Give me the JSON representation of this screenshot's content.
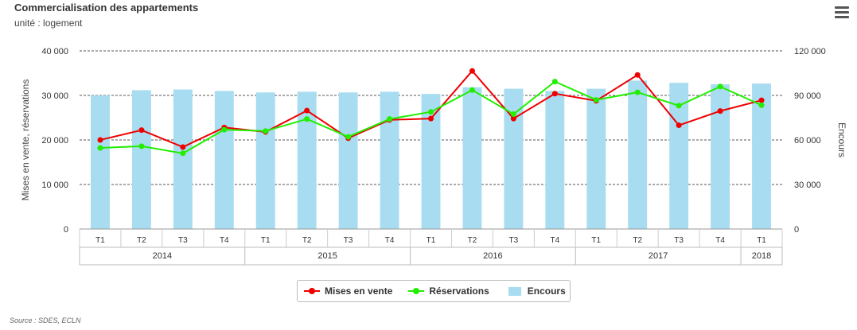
{
  "title": "Commercialisation des appartements",
  "subtitle": "unité : logement",
  "source": "Source : SDES, ECLN",
  "colors": {
    "mises": "#ff0000",
    "reservations": "#33ff00",
    "encours": "#a8dcf0",
    "grid": "#555555",
    "text": "#333333"
  },
  "legend": [
    {
      "label": "Mises en vente",
      "color": "#ee0000",
      "kind": "line"
    },
    {
      "label": "Réservations",
      "color": "#22ee00",
      "kind": "line"
    },
    {
      "label": "Encours",
      "color": "#a8dcf0",
      "kind": "bar"
    }
  ],
  "chart_data": {
    "type": "bar+line",
    "categories": [
      "T1",
      "T2",
      "T3",
      "T4",
      "T1",
      "T2",
      "T3",
      "T4",
      "T1",
      "T2",
      "T3",
      "T4",
      "T1",
      "T2",
      "T3",
      "T4",
      "T1"
    ],
    "years": [
      {
        "label": "2014",
        "count": 4
      },
      {
        "label": "2015",
        "count": 4
      },
      {
        "label": "2016",
        "count": 4
      },
      {
        "label": "2017",
        "count": 4
      },
      {
        "label": "2018",
        "count": 1
      }
    ],
    "ylabel_left": "Mises en vente, réservations",
    "ylabel_right": "Encours",
    "ylim_left": [
      0,
      40000
    ],
    "ylim_right": [
      0,
      120000
    ],
    "yticks_left": [
      "0",
      "10 000",
      "20 000",
      "30 000",
      "40 000"
    ],
    "yticks_right": [
      "0",
      "30 000",
      "60 000",
      "90 000",
      "120 000"
    ],
    "series": [
      {
        "name": "Mises en vente",
        "axis": "left",
        "kind": "line",
        "values": [
          20000,
          22200,
          18400,
          22800,
          21800,
          26600,
          20400,
          24500,
          24800,
          35500,
          24800,
          30400,
          28800,
          34600,
          23300,
          26500,
          28900
        ]
      },
      {
        "name": "Réservations",
        "axis": "left",
        "kind": "line",
        "values": [
          18200,
          18600,
          17000,
          22300,
          22000,
          24700,
          20700,
          24700,
          26300,
          31200,
          25800,
          33100,
          29000,
          30700,
          27700,
          32000,
          27800
        ]
      },
      {
        "name": "Encours",
        "axis": "right",
        "kind": "bar",
        "values": [
          90000,
          93500,
          94000,
          93000,
          92000,
          92500,
          92000,
          92500,
          91000,
          95500,
          94500,
          93000,
          94500,
          100000,
          98500,
          97500,
          98000
        ]
      }
    ]
  }
}
